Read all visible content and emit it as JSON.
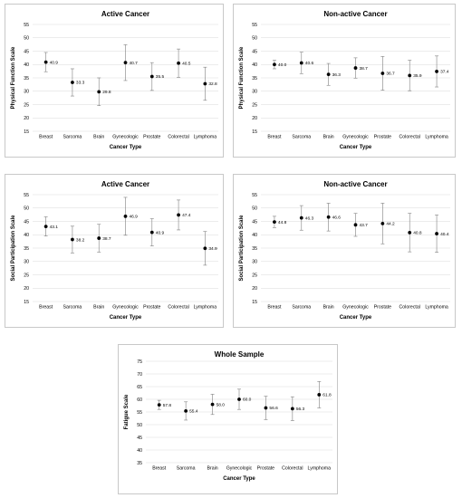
{
  "chart_data": [
    {
      "type": "scatter",
      "title": "Active Cancer",
      "xlabel": "Cancer Type",
      "ylabel": "Physical Function Scale",
      "ylim": [
        15,
        55
      ],
      "yticks": [
        15,
        20,
        25,
        30,
        35,
        40,
        45,
        50,
        55
      ],
      "grid": true,
      "error_bars": true,
      "categories": [
        "Breast",
        "Sarcoma",
        "Brain",
        "Gynecologic",
        "Prostate",
        "Colorectal",
        "Lymphoma"
      ],
      "values": [
        40.9,
        33.3,
        29.8,
        40.7,
        35.5,
        40.5,
        32.8
      ],
      "labels": [
        "40.9",
        "33.3",
        "29.8",
        "40.7",
        "35.5",
        "40.5",
        "32.8"
      ],
      "err_low": [
        37.3,
        28.2,
        24.6,
        34.0,
        30.3,
        35.2,
        26.6
      ],
      "err_high": [
        44.5,
        38.4,
        35.0,
        47.4,
        40.7,
        45.8,
        39.0
      ]
    },
    {
      "type": "scatter",
      "title": "Non-active Cancer",
      "xlabel": "Cancer Type",
      "ylabel": "Physical Function Scale",
      "ylim": [
        15,
        55
      ],
      "yticks": [
        15,
        20,
        25,
        30,
        35,
        40,
        45,
        50,
        55
      ],
      "grid": true,
      "error_bars": true,
      "categories": [
        "Breast",
        "Sarcoma",
        "Brain",
        "Gynecologic",
        "Prostate",
        "Colorectal",
        "Lymphoma"
      ],
      "values": [
        40.0,
        40.6,
        36.3,
        38.7,
        36.7,
        35.9,
        37.4
      ],
      "labels": [
        "40.0",
        "40.6",
        "36.3",
        "38.7",
        "36.7",
        "35.9",
        "37.4"
      ],
      "err_low": [
        38.4,
        36.6,
        32.2,
        34.9,
        30.4,
        30.2,
        31.6
      ],
      "err_high": [
        41.6,
        44.6,
        40.4,
        42.5,
        43.0,
        41.6,
        43.2
      ]
    },
    {
      "type": "scatter",
      "title": "Active Cancer",
      "xlabel": "Cancer Type",
      "ylabel": "Social Participation Scale",
      "ylim": [
        15,
        55
      ],
      "yticks": [
        15,
        20,
        25,
        30,
        35,
        40,
        45,
        50,
        55
      ],
      "grid": true,
      "error_bars": true,
      "categories": [
        "Breast",
        "Sarcoma",
        "Brain",
        "Gynecologic",
        "Prostate",
        "Colorectal",
        "Lymphoma"
      ],
      "values": [
        43.1,
        38.2,
        38.7,
        46.9,
        40.9,
        47.4,
        34.9
      ],
      "labels": [
        "43.1",
        "38.2",
        "38.7",
        "46.9",
        "40.9",
        "47.4",
        "34.9"
      ],
      "err_low": [
        39.5,
        33.2,
        33.5,
        39.8,
        35.8,
        41.8,
        28.6
      ],
      "err_high": [
        46.7,
        43.2,
        43.9,
        54.0,
        46.0,
        53.0,
        41.2
      ]
    },
    {
      "type": "scatter",
      "title": "Non-active Cancer",
      "xlabel": "Cancer Type",
      "ylabel": "Social Participation Scale",
      "ylim": [
        15,
        55
      ],
      "yticks": [
        15,
        20,
        25,
        30,
        35,
        40,
        45,
        50,
        55
      ],
      "grid": true,
      "error_bars": true,
      "categories": [
        "Breast",
        "Sarcoma",
        "Brain",
        "Gynecologic",
        "Prostate",
        "Colorectal",
        "Lymphoma"
      ],
      "values": [
        44.8,
        46.3,
        46.6,
        43.7,
        44.2,
        40.8,
        40.4
      ],
      "labels": [
        "44.8",
        "46.3",
        "46.6",
        "43.7",
        "44.2",
        "40.8",
        "40.4"
      ],
      "err_low": [
        42.7,
        41.7,
        41.4,
        39.4,
        36.6,
        33.6,
        33.4
      ],
      "err_high": [
        46.9,
        50.9,
        51.8,
        48.0,
        51.8,
        48.0,
        47.4
      ]
    },
    {
      "type": "scatter",
      "title": "Whole Sample",
      "xlabel": "Cancer Type",
      "ylabel": "Fatigue Scale",
      "ylim": [
        35,
        75
      ],
      "yticks": [
        35,
        40,
        45,
        50,
        55,
        60,
        65,
        70,
        75
      ],
      "grid": true,
      "error_bars": true,
      "categories": [
        "Breast",
        "Sarcoma",
        "Brain",
        "Gynecologic",
        "Prostate",
        "Colorectal",
        "Lymphoma"
      ],
      "values": [
        57.8,
        55.4,
        58.0,
        60.0,
        56.6,
        56.3,
        61.8
      ],
      "labels": [
        "57.8",
        "55.4",
        "58.0",
        "60.0",
        "56.6",
        "56.3",
        "61.8"
      ],
      "err_low": [
        56.0,
        51.8,
        54.0,
        56.0,
        52.0,
        51.6,
        56.6
      ],
      "err_high": [
        59.6,
        59.0,
        62.0,
        64.0,
        61.2,
        61.0,
        67.0
      ]
    }
  ]
}
